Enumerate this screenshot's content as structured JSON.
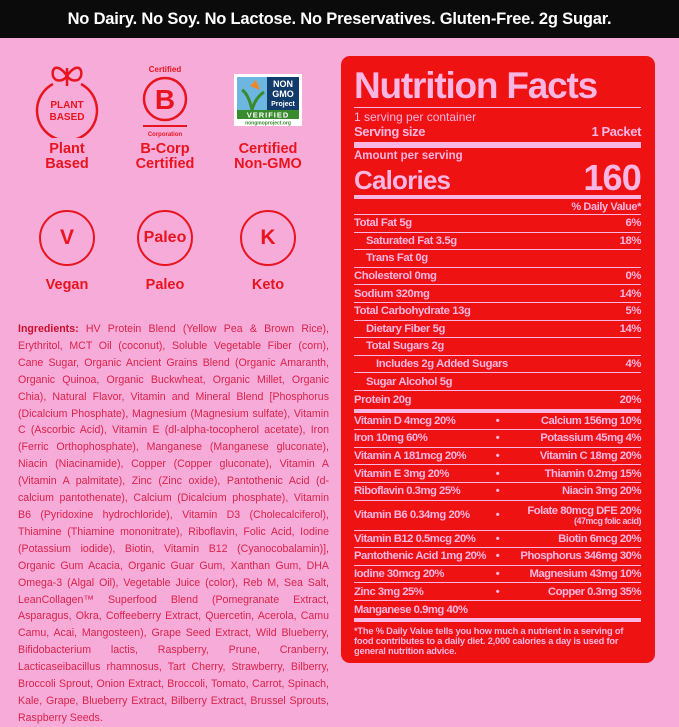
{
  "banner": "No Dairy.  No Soy.  No Lactose.  No Preservatives.  Gluten-Free.  2g Sugar.",
  "badges": [
    {
      "icon": "plant-based-icon",
      "inner": "PLANT BASED",
      "label1": "Plant",
      "label2": "Based"
    },
    {
      "icon": "b-corp-icon",
      "top": "Certified",
      "inner": "B",
      "bottom": "Corporation",
      "label1": "B-Corp",
      "label2": "Certified"
    },
    {
      "icon": "non-gmo-icon",
      "inner1": "NON GMO Project",
      "inner2": "VERIFIED",
      "inner3": "nongmoproject.org",
      "label1": "Certified",
      "label2": "Non-GMO"
    },
    {
      "icon": "vegan-icon",
      "inner": "V",
      "label1": "Vegan"
    },
    {
      "icon": "paleo-icon",
      "inner": "Paleo",
      "label1": "Paleo"
    },
    {
      "icon": "keto-icon",
      "inner": "K",
      "label1": "Keto"
    }
  ],
  "ingredients": {
    "label": "Ingredients:",
    "text": " HV Protein Blend (Yellow Pea & Brown Rice), Erythritol, MCT Oil (coconut), Soluble Vegetable Fiber (corn), Cane Sugar, Organic Ancient Grains Blend (Organic Amaranth, Organic Quinoa, Organic Buckwheat, Organic Millet, Organic Chia), Natural Flavor, Vitamin and Mineral Blend [Phosphorus (Dicalcium Phosphate), Magnesium (Magnesium sulfate), Vitamin C (Ascorbic Acid), Vitamin E (dl-alpha-tocopherol acetate), Iron (Ferric Orthophosphate), Manganese (Manganese gluconate), Niacin (Niacinamide), Copper (Copper gluconate), Vitamin A (Vitamin A palmitate), Zinc (Zinc oxide), Pantothenic Acid (d-calcium pantothenate), Calcium (Dicalcium phosphate), Vitamin B6 (Pyridoxine hydrochloride), Vitamin D3 (Cholecalciferol), Thiamine (Thiamine mononitrate), Riboflavin, Folic Acid, Iodine (Potassium iodide), Biotin, Vitamin B12 (Cyanocobalamin)], Organic Gum Acacia, Organic Guar Gum, Xanthan Gum, DHA Omega-3 (Algal Oil), Vegetable Juice (color), Reb M, Sea Salt, LeanCollagen™ Superfood Blend (Pomegranate Extract, Asparagus, Okra, Coffeeberry Extract, Quercetin, Acerola, Camu Camu, Acai, Mangosteen), Grape Seed Extract, Wild Blueberry, Bifidobacterium lactis, Raspberry, Prune, Cranberry, Lacticaseibacillus rhamnosus, Tart Cherry, Strawberry, Bilberry, Broccoli Sprout, Onion Extract, Broccoli, Tomato, Carrot, Spinach, Kale, Grape, Blueberry Extract, Bilberry Extract, Brussel Sprouts, Raspberry Seeds."
  },
  "nutrition": {
    "title": "Nutrition Facts",
    "servings": "1 serving per container",
    "serving_size_label": "Serving size",
    "serving_size": "1 Packet",
    "amount_per_serving": "Amount per serving",
    "calories_label": "Calories",
    "calories": "160",
    "dv_header": "% Daily Value*",
    "rows": [
      {
        "label": "Total Fat 5g",
        "dv": "6%",
        "indent": 0
      },
      {
        "label": "Saturated Fat 3.5g",
        "dv": "18%",
        "indent": 1
      },
      {
        "label": "Trans Fat 0g",
        "dv": "",
        "indent": 1
      },
      {
        "label": "Cholesterol 0mg",
        "dv": "0%",
        "indent": 0
      },
      {
        "label": "Sodium 320mg",
        "dv": "14%",
        "indent": 0
      },
      {
        "label": "Total Carbohydrate 13g",
        "dv": "5%",
        "indent": 0
      },
      {
        "label": "Dietary Fiber 5g",
        "dv": "14%",
        "indent": 1
      },
      {
        "label": "Total Sugars 2g",
        "dv": "",
        "indent": 1
      },
      {
        "label": "Includes 2g Added Sugars",
        "dv": "4%",
        "indent": 2
      },
      {
        "label": "Sugar Alcohol 5g",
        "dv": "",
        "indent": 1
      },
      {
        "label": "Protein 20g",
        "dv": "20%",
        "indent": 0
      }
    ],
    "vitamins": [
      {
        "left": "Vitamin D 4mcg 20%",
        "right": "Calcium 156mg 10%"
      },
      {
        "left": "Iron 10mg 60%",
        "right": "Potassium 45mg 4%"
      },
      {
        "left": "Vitamin A 181mcg 20%",
        "right": "Vitamin C 18mg 20%"
      },
      {
        "left": "Vitamin E 3mg 20%",
        "right": "Thiamin 0.2mg 15%"
      },
      {
        "left": "Riboflavin 0.3mg 25%",
        "right": "Niacin 3mg 20%"
      },
      {
        "left": "Vitamin B6 0.34mg 20%",
        "right": "Folate 80mcg DFE 20%",
        "right_sub": "(47mcg folic acid)"
      },
      {
        "left": "Vitamin B12 0.5mcg 20%",
        "right": "Biotin 6mcg 20%"
      },
      {
        "left": "Pantothenic Acid 1mg 20%",
        "right": "Phosphorus 346mg 30%"
      },
      {
        "left": "Iodine 30mcg 20%",
        "right": "Magnesium 43mg 10%"
      },
      {
        "left": "Zinc 3mg 25%",
        "right": "Copper 0.3mg 35%"
      },
      {
        "left": "Manganese 0.9mg 40%",
        "right": ""
      }
    ],
    "separator": "•",
    "footnote": "*The % Daily Value tells you how much a nutrient in a serving of food contributes to a daily diet. 2,000 calories a day is used for general nutrition advice."
  },
  "colors": {
    "background": "#f7abd9",
    "panel": "#ee1212",
    "accent": "#e8141e",
    "banner": "#0b0b0b"
  }
}
